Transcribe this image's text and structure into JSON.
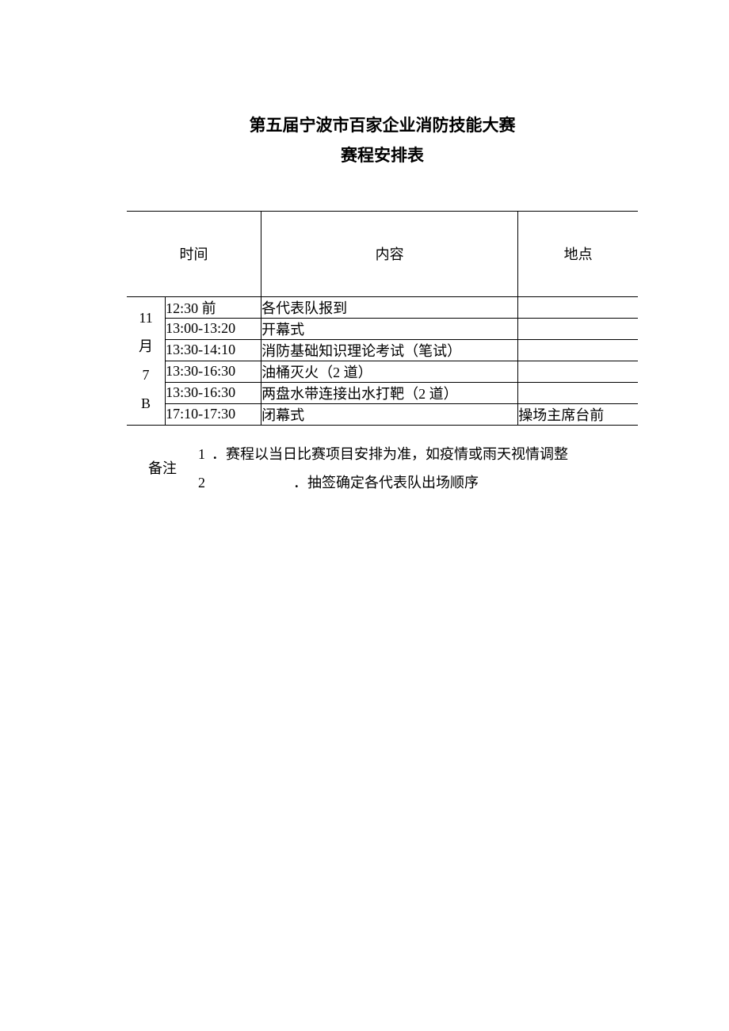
{
  "title": {
    "line1": "第五届宁波市百家企业消防技能大赛",
    "line2": "赛程安排表"
  },
  "table": {
    "headers": {
      "time": "时间",
      "content": "内容",
      "location": "地点"
    },
    "date_label": "11\n月\n7\nB",
    "rows": [
      {
        "time": "12:30 前",
        "content": "各代表队报到",
        "location": ""
      },
      {
        "time": "13:00-13:20",
        "content": "开幕式",
        "location": ""
      },
      {
        "time": "13:30-14:10",
        "content": "消防基础知识理论考试（笔试）",
        "location": ""
      },
      {
        "time": "13:30-16:30",
        "content": "油桶灭火（2 道）",
        "location": ""
      },
      {
        "time": "13:30-16:30",
        "content": "两盘水带连接出水打靶（2 道）",
        "location": ""
      },
      {
        "time": "17:10-17:30",
        "content": "闭幕式",
        "location": "操场主席台前"
      }
    ]
  },
  "notes": {
    "label": "备注",
    "items": [
      {
        "num": "1",
        "text": "．赛程以当日比赛项目安排为准，如疫情或雨天视情调整"
      },
      {
        "num": "2",
        "text": "．抽签确定各代表队出场顺序"
      }
    ]
  },
  "style": {
    "font_size_title": 21,
    "font_size_body": 18,
    "border_color": "#000000",
    "background_color": "#ffffff",
    "text_color": "#000000"
  }
}
